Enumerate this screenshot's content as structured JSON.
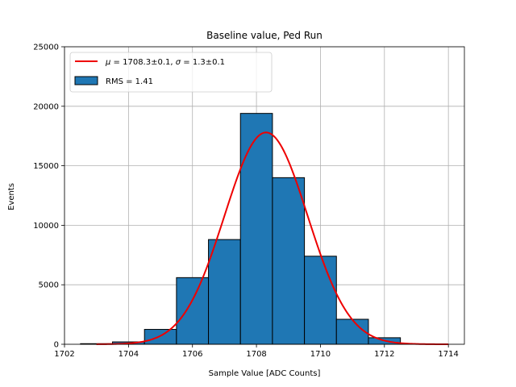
{
  "chart_data": {
    "type": "bar",
    "title": "Baseline value, Ped Run",
    "xlabel": "Sample Value [ADC Counts]",
    "ylabel": "Events",
    "xlim": [
      1702,
      1714.5
    ],
    "ylim": [
      0,
      25000
    ],
    "xticks": [
      1702,
      1704,
      1706,
      1708,
      1710,
      1712,
      1714
    ],
    "yticks": [
      0,
      5000,
      10000,
      15000,
      20000,
      25000
    ],
    "grid": true,
    "legend_position": "top-left",
    "bins": [
      {
        "left": 1702.5,
        "right": 1703.5,
        "value": 50
      },
      {
        "left": 1703.5,
        "right": 1704.5,
        "value": 200
      },
      {
        "left": 1704.5,
        "right": 1705.5,
        "value": 1250
      },
      {
        "left": 1705.5,
        "right": 1706.5,
        "value": 5600
      },
      {
        "left": 1706.5,
        "right": 1707.5,
        "value": 8800
      },
      {
        "left": 1707.5,
        "right": 1708.5,
        "value": 19400
      },
      {
        "left": 1708.5,
        "right": 1709.5,
        "value": 14000
      },
      {
        "left": 1709.5,
        "right": 1710.5,
        "value": 7400
      },
      {
        "left": 1710.5,
        "right": 1711.5,
        "value": 2100
      },
      {
        "left": 1711.5,
        "right": 1712.5,
        "value": 550
      },
      {
        "left": 1712.5,
        "right": 1713.5,
        "value": 30
      }
    ],
    "fit": {
      "name": "$\\mu = 1708.3\\pm0.1$, $\\sigma = 1.3\\pm0.1$",
      "mu": 1708.3,
      "sigma": 1.3,
      "amplitude": 17800,
      "x_range": [
        1703,
        1714
      ],
      "color": "#ee0000"
    },
    "series": [
      {
        "name": "μ = 1708.3±0.1, σ = 1.3±0.1",
        "type": "line",
        "color": "#ee0000"
      },
      {
        "name": "RMS = 1.41",
        "type": "bar",
        "color": "#1f77b4"
      }
    ],
    "legend": {
      "fit_label_parts": [
        "μ",
        " = 1708.3±0.1, ",
        "σ",
        " = 1.3±0.1"
      ],
      "hist_label": "RMS = 1.41"
    },
    "bar_color": "#1f77b4",
    "bar_edge_color": "#000000"
  }
}
